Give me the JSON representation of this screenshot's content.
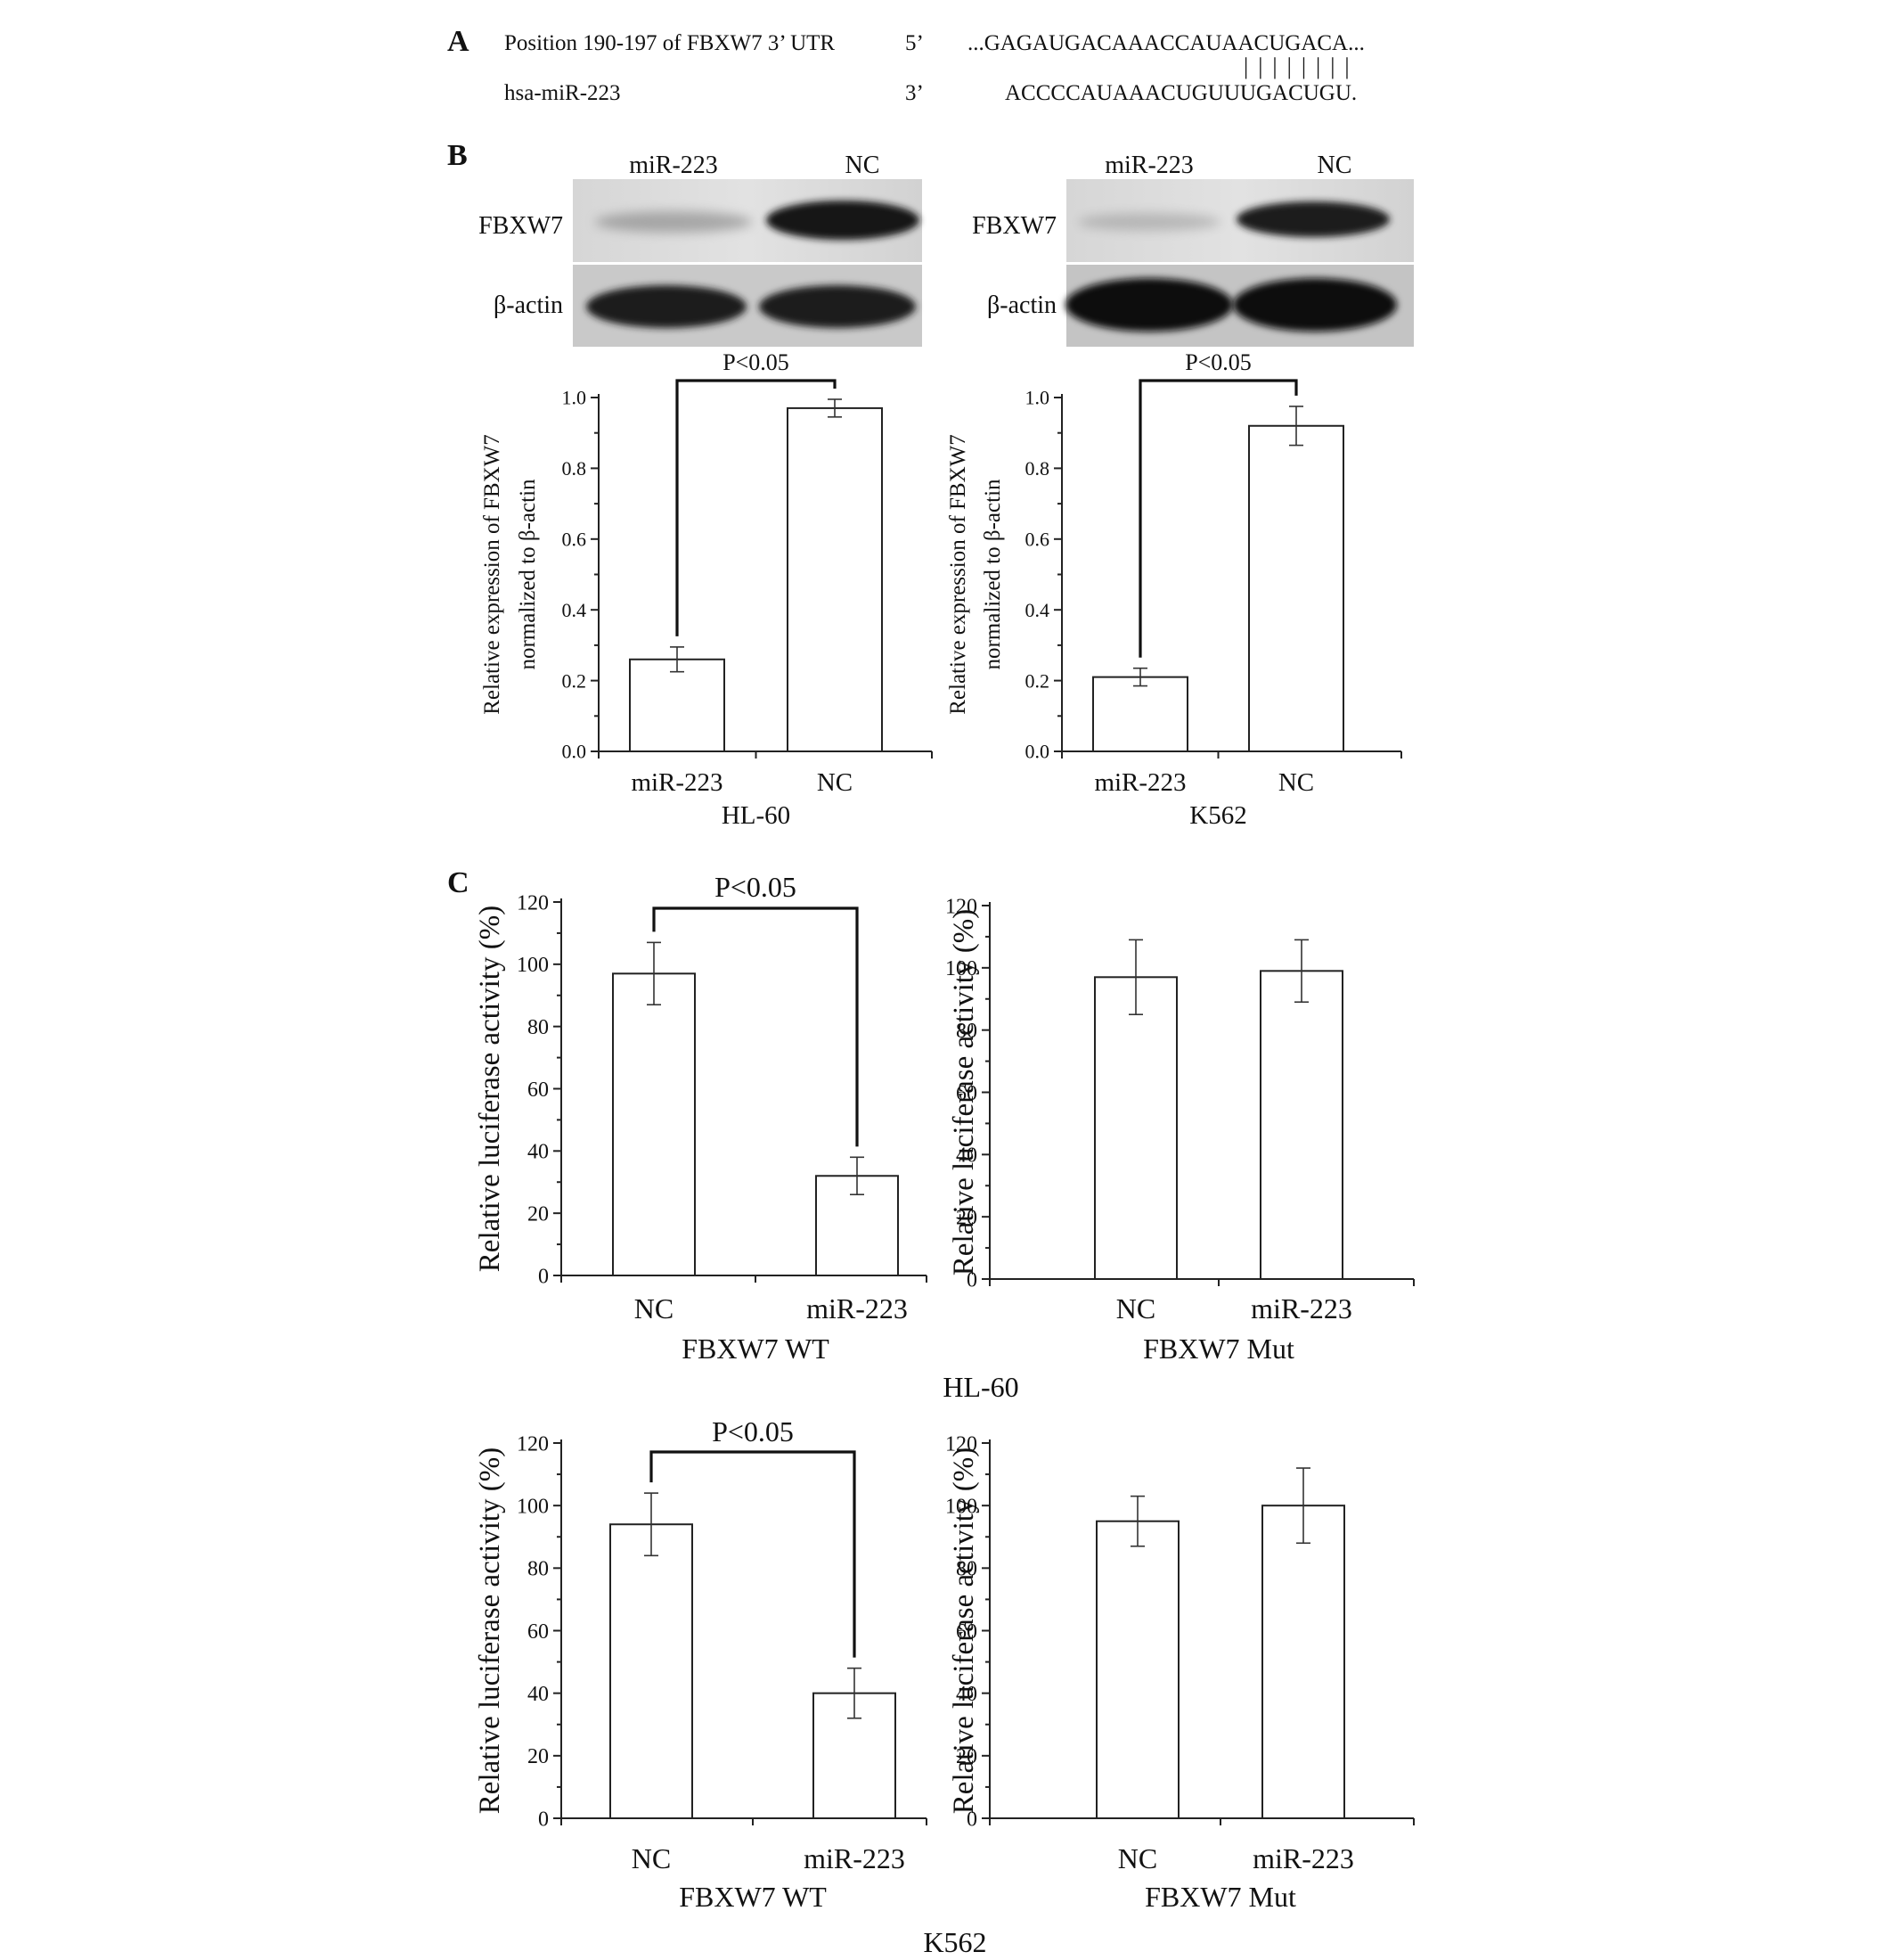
{
  "panel_a": {
    "label": "A",
    "row1_name": "Position 190-197 of FBXW7 3’ UTR",
    "row1_end": "5’",
    "row1_seq": "...GAGAUGACAAACCAUAACUGACA...",
    "pair_marks": "||||||||",
    "row2_name": "hsa-miR-223",
    "row2_end": "3’",
    "row2_seq": "ACCCCAUAAACUGUUUGACUGU."
  },
  "panel_b": {
    "label": "B",
    "blots": [
      {
        "lane_labels": [
          "miR-223",
          "NC"
        ],
        "rows": [
          "FBXW7",
          "β-actin"
        ]
      },
      {
        "lane_labels": [
          "miR-223",
          "NC"
        ],
        "rows": [
          "FBXW7",
          "β-actin"
        ]
      }
    ]
  },
  "panel_c": {
    "label": "C",
    "cell_labels": [
      "HL-60",
      "K562"
    ]
  },
  "chart_data": [
    {
      "type": "bar",
      "panel": "B",
      "cell_line": "HL-60",
      "categories": [
        "miR-223",
        "NC"
      ],
      "values": [
        0.26,
        0.97
      ],
      "errors": [
        0.035,
        0.025
      ],
      "xlabel": "HL-60",
      "ylabel_lines": [
        "Relative expression of FBXW7",
        "normalized to β-actin"
      ],
      "ylim": [
        0,
        1.0
      ],
      "yticks": [
        0.0,
        0.2,
        0.4,
        0.6,
        0.8,
        1.0
      ],
      "tick_decimals": 1,
      "significance": "P<0.05"
    },
    {
      "type": "bar",
      "panel": "B",
      "cell_line": "K562",
      "categories": [
        "miR-223",
        "NC"
      ],
      "values": [
        0.21,
        0.92
      ],
      "errors": [
        0.025,
        0.055
      ],
      "xlabel": "K562",
      "ylabel_lines": [
        "Relative expression of FBXW7",
        "normalized to β-actin"
      ],
      "ylim": [
        0,
        1.0
      ],
      "yticks": [
        0.0,
        0.2,
        0.4,
        0.6,
        0.8,
        1.0
      ],
      "tick_decimals": 1,
      "significance": "P<0.05"
    },
    {
      "type": "bar",
      "panel": "C",
      "cell_line": "HL-60",
      "categories": [
        "NC",
        "miR-223"
      ],
      "values": [
        97,
        32
      ],
      "errors": [
        10,
        6
      ],
      "xlabel": "FBXW7 WT",
      "ylabel_lines": [
        "Relative luciferase activity (%)"
      ],
      "ylim": [
        0,
        120
      ],
      "yticks": [
        0,
        20,
        40,
        60,
        80,
        100,
        120
      ],
      "tick_decimals": 0,
      "significance": "P<0.05"
    },
    {
      "type": "bar",
      "panel": "C",
      "cell_line": "HL-60",
      "categories": [
        "NC",
        "miR-223"
      ],
      "values": [
        97,
        99
      ],
      "errors": [
        12,
        10
      ],
      "xlabel": "FBXW7 Mut",
      "ylabel_lines": [
        "Relative luciferase activity (%)"
      ],
      "ylim": [
        0,
        120
      ],
      "yticks": [
        0,
        20,
        40,
        60,
        80,
        100,
        120
      ],
      "tick_decimals": 0,
      "significance": ""
    },
    {
      "type": "bar",
      "panel": "C",
      "cell_line": "K562",
      "categories": [
        "NC",
        "miR-223"
      ],
      "values": [
        94,
        40
      ],
      "errors": [
        10,
        8
      ],
      "xlabel": "FBXW7 WT",
      "ylabel_lines": [
        "Relative luciferase activity (%)"
      ],
      "ylim": [
        0,
        120
      ],
      "yticks": [
        0,
        20,
        40,
        60,
        80,
        100,
        120
      ],
      "tick_decimals": 0,
      "significance": "P<0.05"
    },
    {
      "type": "bar",
      "panel": "C",
      "cell_line": "K562",
      "categories": [
        "NC",
        "miR-223"
      ],
      "values": [
        95,
        100
      ],
      "errors": [
        8,
        12
      ],
      "xlabel": "FBXW7 Mut",
      "ylabel_lines": [
        "Relative luciferase activity (%)"
      ],
      "ylim": [
        0,
        120
      ],
      "yticks": [
        0,
        20,
        40,
        60,
        80,
        100,
        120
      ],
      "tick_decimals": 0,
      "significance": ""
    }
  ]
}
